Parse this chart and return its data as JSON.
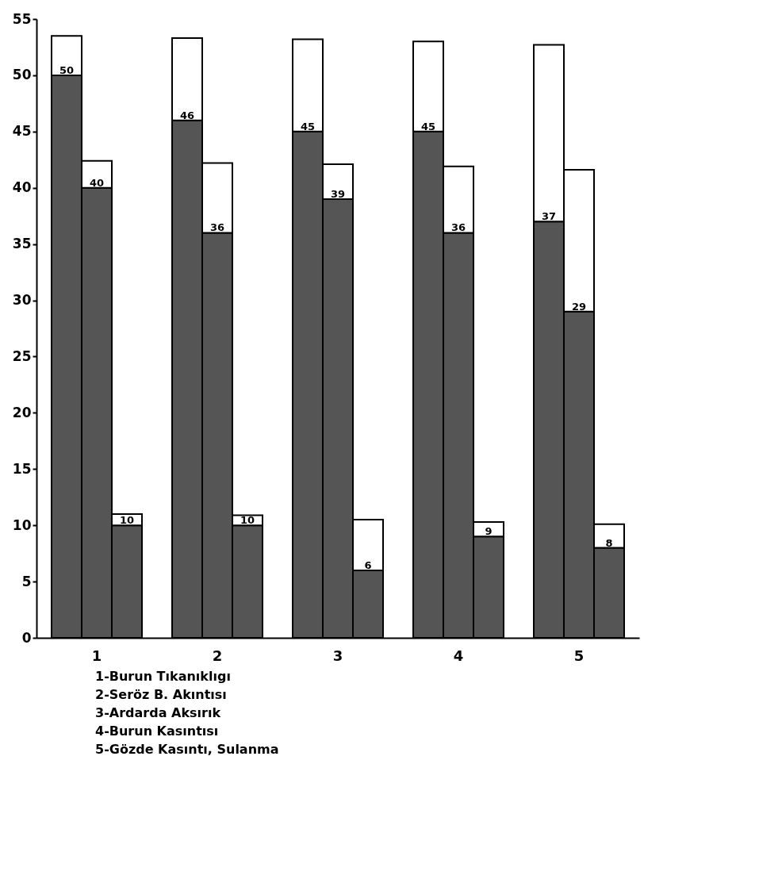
{
  "chart_data": {
    "type": "bar",
    "stacked": true,
    "categories": [
      null,
      "1",
      null,
      null,
      null,
      "2",
      null,
      null,
      null,
      "3",
      null,
      null,
      null,
      "4",
      null,
      null,
      null,
      "5",
      null
    ],
    "series": [
      {
        "color": "#555555",
        "values": [
          50,
          40,
          10,
          null,
          46,
          36,
          10,
          null,
          45,
          39,
          6,
          null,
          45,
          36,
          9,
          null,
          37,
          29,
          8
        ],
        "value_labels": [
          "50",
          "40",
          "10",
          null,
          "46",
          "36",
          "10",
          null,
          "45",
          "39",
          "6",
          null,
          "45",
          "36",
          "9",
          null,
          "37",
          "29",
          "8"
        ]
      },
      {
        "color": "#ffffff",
        "values": [
          3.5,
          2.4,
          1,
          null,
          7.3,
          6.2,
          0.9,
          null,
          8.2,
          3.1,
          4.5,
          null,
          8,
          5.9,
          1.3,
          null,
          15.7,
          12.6,
          2.1
        ]
      }
    ],
    "ylim": [
      0,
      55
    ],
    "yticks": [
      0,
      5,
      10,
      15,
      20,
      25,
      30,
      35,
      40,
      45,
      50,
      55
    ],
    "annotations": [
      "1-Burun Tıkanıklıgı",
      "2-Seröz B. Akıntısı",
      "3-Ardarda Aksırık",
      "4-Burun Kasıntısı",
      "5-Gözde Kasıntı, Sulanma"
    ]
  }
}
